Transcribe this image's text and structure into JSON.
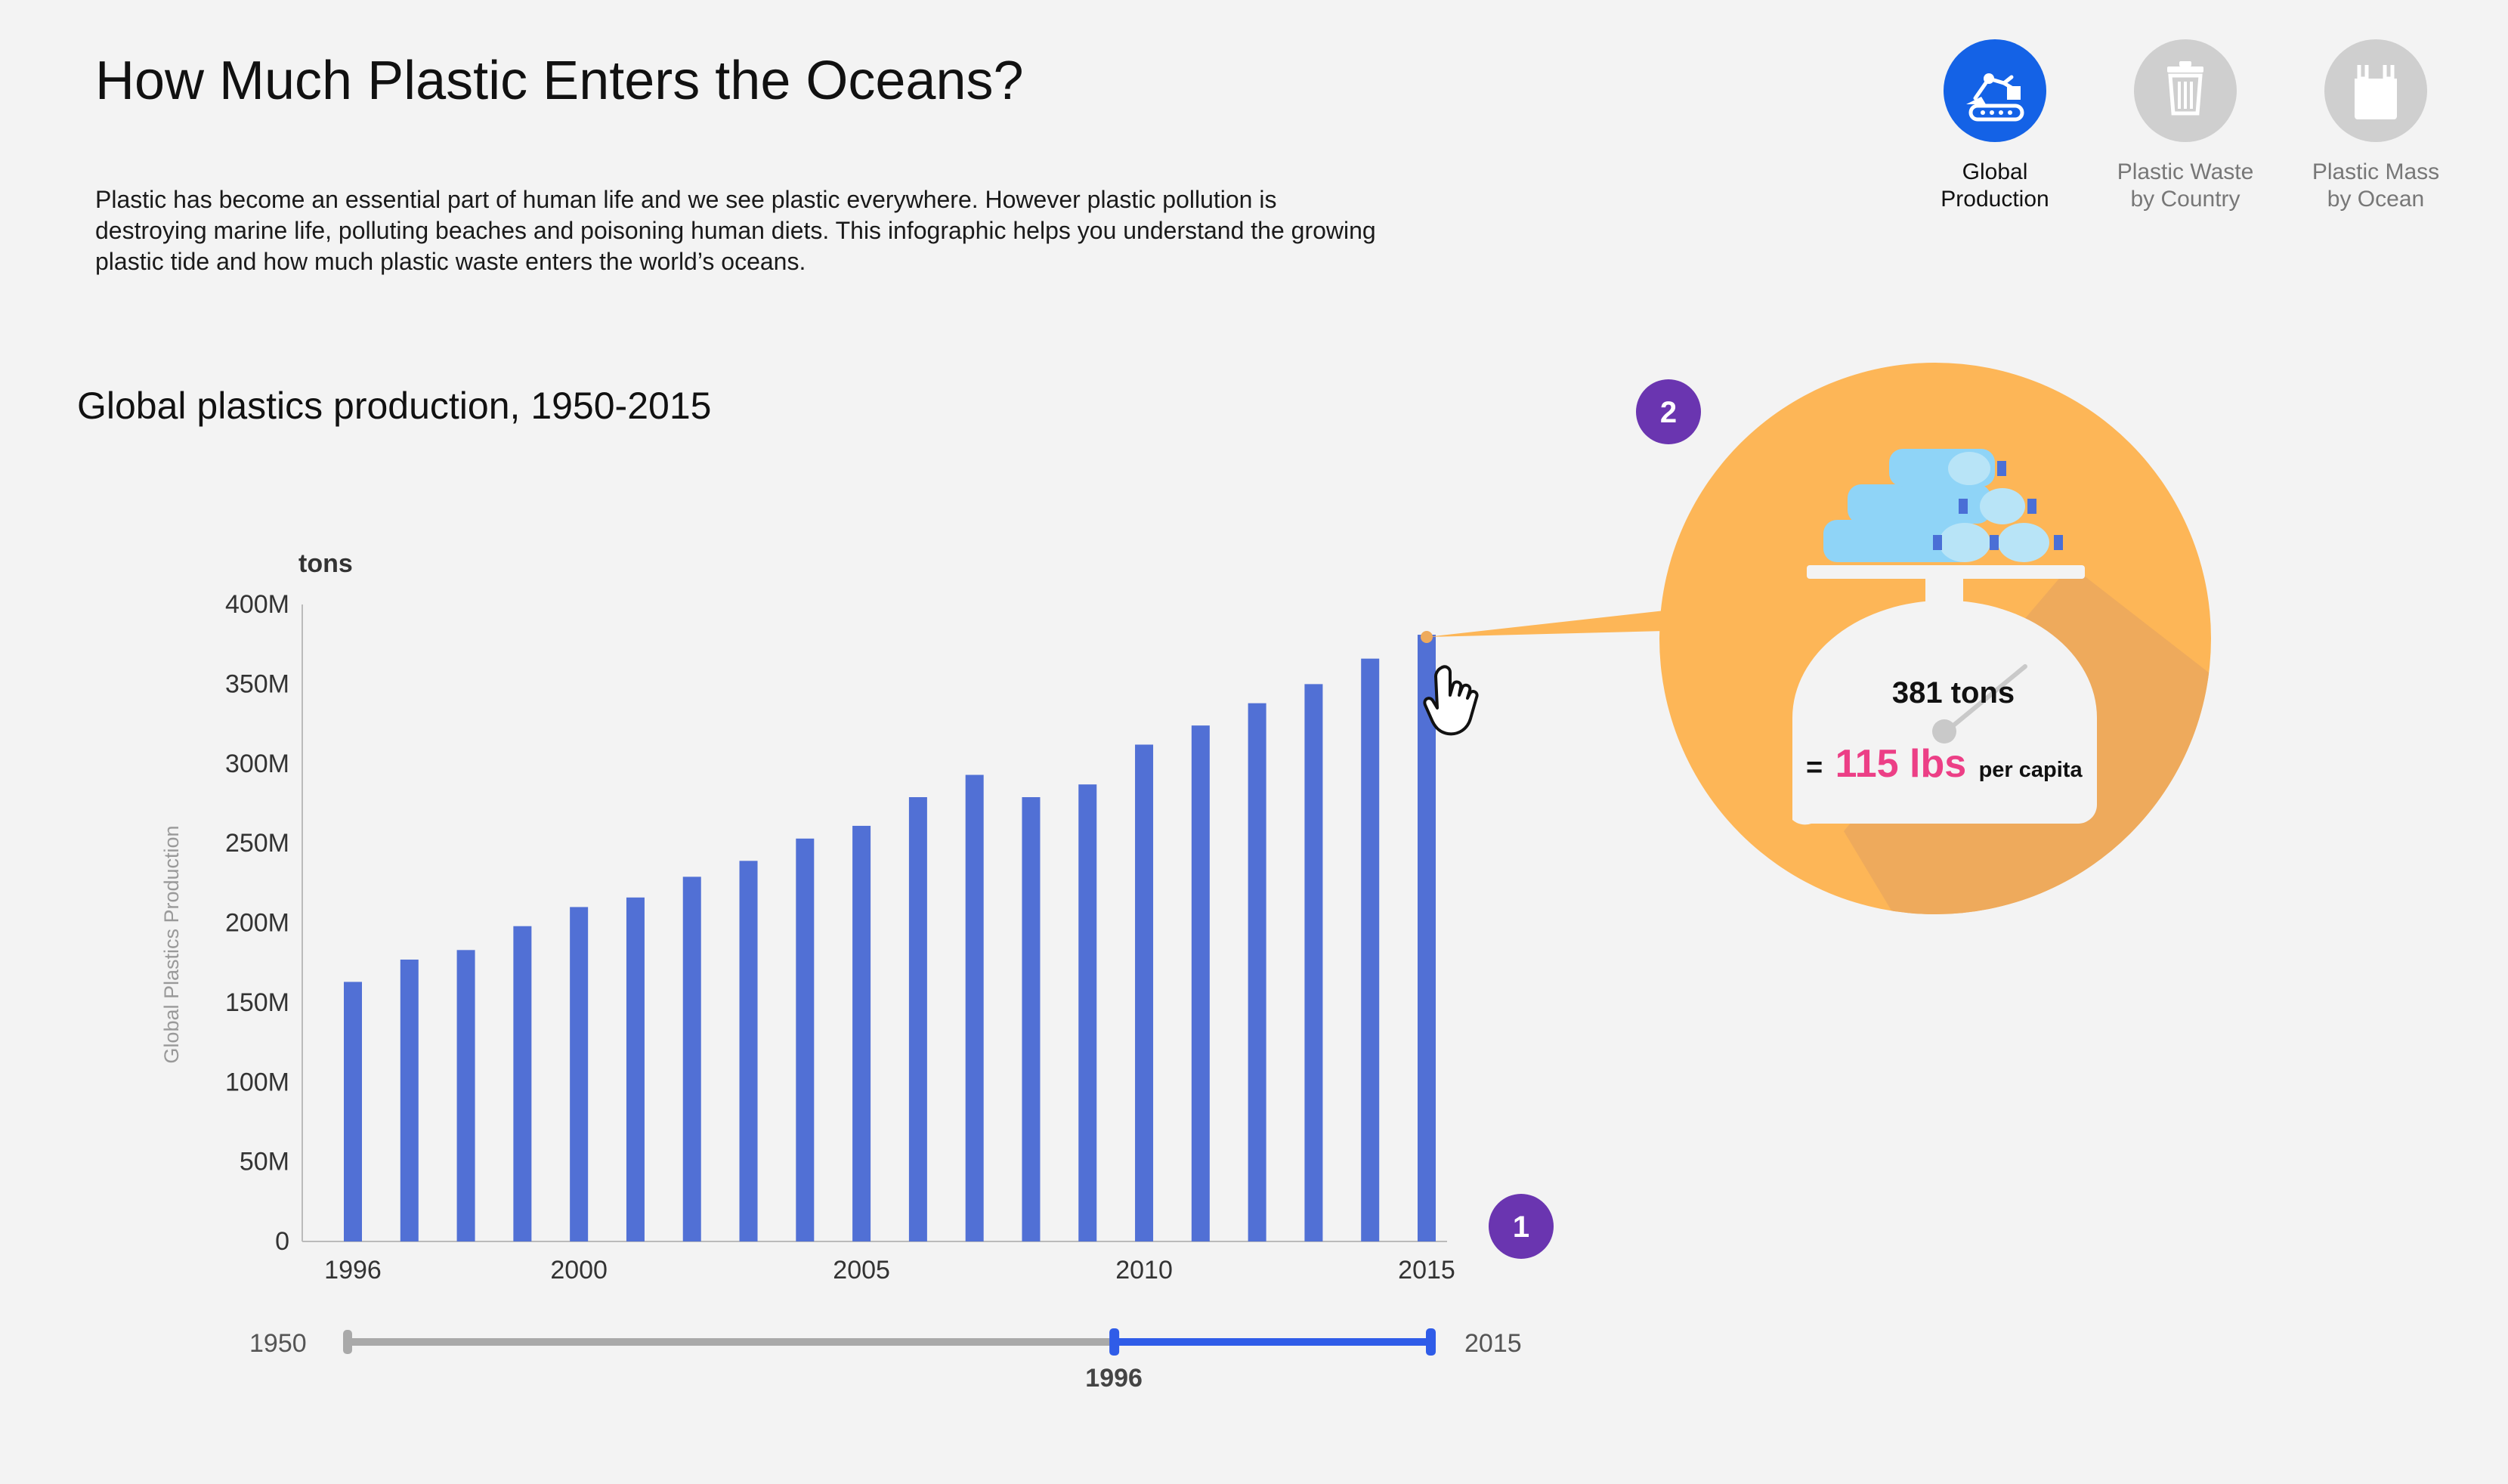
{
  "header": {
    "title": "How Much Plastic Enters the Oceans?",
    "intro": "Plastic has become an essential part of human life and we see plastic everywhere. However plastic pollution is destroying marine life, polluting beaches and poisoning human diets. This infographic helps you understand the growing plastic tide and how much plastic waste enters the world’s oceans."
  },
  "nav": {
    "items": [
      {
        "label": "Global\nProduction",
        "icon": "factory-robot-icon",
        "active": true
      },
      {
        "label": "Plastic Waste\nby Country",
        "icon": "trash-can-icon",
        "active": false
      },
      {
        "label": "Plastic Mass\nby Ocean",
        "icon": "plastic-bag-icon",
        "active": false
      }
    ]
  },
  "colors": {
    "bar": "#5170d5",
    "accent": "#1462e6",
    "badge": "#6a35b0",
    "bubble": "#fdb657",
    "bubble_shadow": "#eeaa5c",
    "pink": "#ec3f86",
    "slider_track": "#a9a9a9",
    "slider_active": "#2f5ce8"
  },
  "chart_data": {
    "type": "bar",
    "title": "Global plastics production, 1950-2015",
    "unit_label": "tons",
    "ylabel": "Global Plastics Production",
    "ylim": [
      0,
      400000000
    ],
    "yticks": [
      "0",
      "50M",
      "100M",
      "150M",
      "200M",
      "250M",
      "300M",
      "350M",
      "400M"
    ],
    "x": [
      1996,
      1997,
      1998,
      1999,
      2000,
      2001,
      2002,
      2003,
      2004,
      2005,
      2006,
      2007,
      2008,
      2009,
      2010,
      2011,
      2012,
      2013,
      2014,
      2015
    ],
    "xticks": [
      "1996",
      "2000",
      "2005",
      "2010",
      "2015"
    ],
    "values": [
      163000000,
      177000000,
      183000000,
      198000000,
      210000000,
      216000000,
      229000000,
      239000000,
      253000000,
      261000000,
      279000000,
      293000000,
      279000000,
      287000000,
      312000000,
      324000000,
      338000000,
      350000000,
      366000000,
      381000000
    ],
    "grid": false,
    "highlighted_year": 2015
  },
  "tooltip": {
    "badge": "2",
    "tons_text": "381 tons",
    "eq": "=",
    "lbs": "115 lbs",
    "per_capita": "per capita"
  },
  "slider": {
    "min_label": "1950",
    "max_label": "2015",
    "range_start": 1996,
    "range_end": 2015,
    "start_label": "1996",
    "badge": "1"
  }
}
